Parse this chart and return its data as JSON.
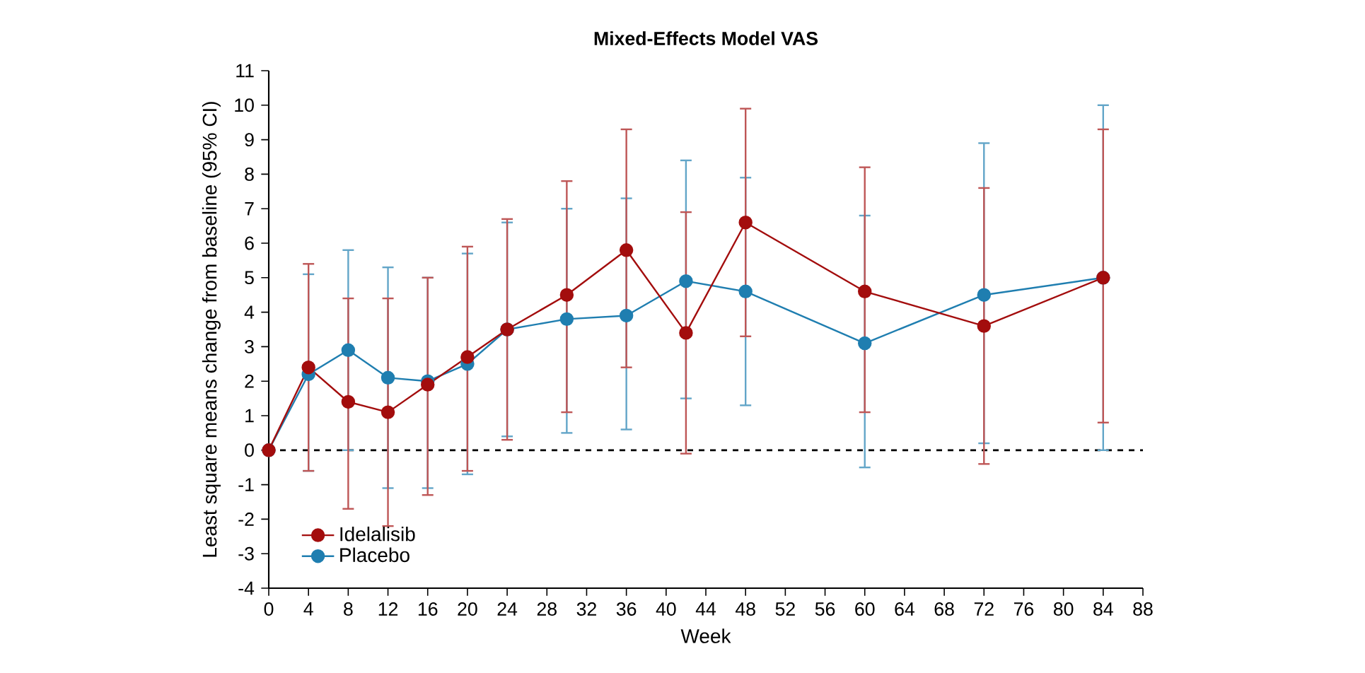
{
  "chart_data": {
    "type": "line",
    "title": "Mixed-Effects Model VAS",
    "xlabel": "Week",
    "ylabel": "Least square means change from baseline (95% CI)",
    "x": [
      0,
      4,
      8,
      12,
      16,
      20,
      24,
      30,
      36,
      42,
      48,
      60,
      72,
      84
    ],
    "series": [
      {
        "name": "Idelalisib",
        "color": "#a30d0d",
        "values": [
          0,
          2.4,
          1.4,
          1.1,
          1.9,
          2.7,
          3.5,
          4.5,
          5.8,
          3.4,
          6.6,
          4.6,
          3.6,
          5.0
        ],
        "errors": [
          null,
          [
            -0.6,
            5.4
          ],
          [
            -1.7,
            4.4
          ],
          [
            -2.2,
            4.4
          ],
          [
            -1.3,
            5.0
          ],
          [
            -0.6,
            5.9
          ],
          [
            0.3,
            6.7
          ],
          [
            1.1,
            7.8
          ],
          [
            2.4,
            9.3
          ],
          [
            -0.1,
            6.9
          ],
          [
            3.3,
            9.9
          ],
          [
            1.1,
            8.2
          ],
          [
            -0.4,
            7.6
          ],
          [
            0.8,
            9.3
          ]
        ]
      },
      {
        "name": "Placebo",
        "color": "#1f7eb0",
        "values": [
          0,
          2.2,
          2.9,
          2.1,
          2.0,
          2.5,
          3.5,
          3.8,
          3.9,
          4.9,
          4.6,
          3.1,
          4.5,
          5.0
        ],
        "errors": [
          null,
          [
            -0.6,
            5.1
          ],
          [
            0.0,
            5.8
          ],
          [
            -1.1,
            5.3
          ],
          [
            -1.1,
            5.0
          ],
          [
            -0.7,
            5.7
          ],
          [
            0.4,
            6.6
          ],
          [
            0.5,
            7.0
          ],
          [
            0.6,
            7.3
          ],
          [
            1.5,
            8.4
          ],
          [
            1.3,
            7.9
          ],
          [
            -0.5,
            6.8
          ],
          [
            0.2,
            8.9
          ],
          [
            0.0,
            10.0
          ]
        ]
      }
    ],
    "xlim": [
      0,
      88
    ],
    "xticks": [
      0,
      4,
      8,
      12,
      16,
      20,
      24,
      28,
      32,
      36,
      40,
      44,
      48,
      52,
      56,
      60,
      64,
      68,
      72,
      76,
      80,
      84,
      88
    ],
    "ylim": [
      -4,
      11
    ],
    "yticks": [
      -4,
      -3,
      -2,
      -1,
      0,
      1,
      2,
      3,
      4,
      5,
      6,
      7,
      8,
      9,
      10,
      11
    ],
    "ref_lines": [
      {
        "axis": "y",
        "value": 0,
        "color": "#000000",
        "line_style": "dashed"
      }
    ],
    "legend": "bottom left",
    "marker": "circle",
    "line_style": "solid",
    "grid": false
  }
}
